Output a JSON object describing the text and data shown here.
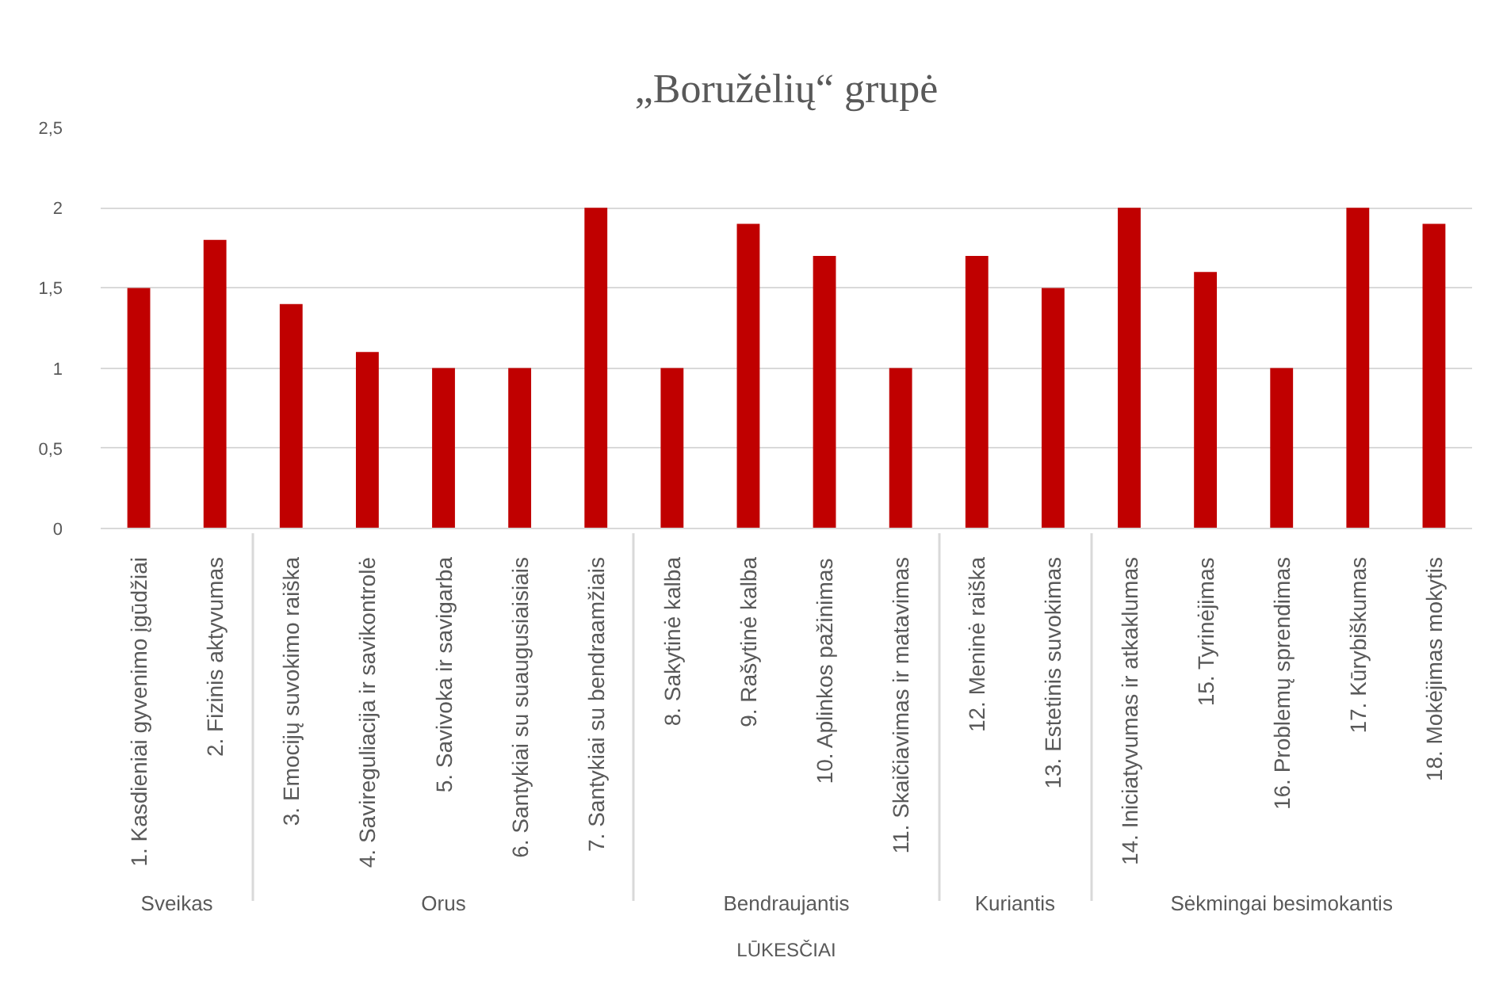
{
  "chart_data": {
    "type": "bar",
    "title": "„Boružėlių“ grupė",
    "categories": [
      [
        "LŪKESČIAI",
        "Sveikas",
        "1. Kasdieniai gyvenimo įgūdžiai"
      ],
      [
        null,
        null,
        "2. Fizinis aktyvumas"
      ],
      [
        null,
        "Orus",
        "3. Emocijų suvokimo raiška"
      ],
      [
        null,
        null,
        "4. Savireguliacija ir savikontrolė"
      ],
      [
        null,
        null,
        "5. Savivoka ir savigarba"
      ],
      [
        null,
        null,
        "6. Santykiai su suaugusiaisiais"
      ],
      [
        null,
        null,
        "7. Santykiai su bendraamžiais"
      ],
      [
        null,
        "Bendraujantis",
        "8. Sakytinė kalba"
      ],
      [
        null,
        null,
        "9. Rašytinė kalba"
      ],
      [
        null,
        null,
        "10. Aplinkos pažinimas"
      ],
      [
        null,
        null,
        "11. Skaičiavimas ir matavimas"
      ],
      [
        null,
        "Kuriantis",
        "12. Meninė raiška"
      ],
      [
        null,
        null,
        "13. Estetinis suvokimas"
      ],
      [
        null,
        "Sėkmingai besimokantis",
        "14. Iniciatyvumas ir atkaklumas"
      ],
      [
        null,
        null,
        "15. Tyrinėjimas"
      ],
      [
        null,
        null,
        "16. Problemų sprendimas"
      ],
      [
        null,
        null,
        "17. Kūrybiškumas"
      ],
      [
        null,
        null,
        "18. Mokėjimas mokytis"
      ]
    ],
    "values": [
      1.5,
      1.8,
      1.4,
      1.1,
      1.0,
      1.0,
      2.0,
      1.0,
      1.9,
      1.7,
      1.0,
      1.7,
      1.5,
      2.0,
      1.6,
      1.0,
      2.0,
      1.9
    ],
    "color": "#c00000",
    "ylim": [
      0,
      2.5
    ],
    "yticks": [
      0,
      {
        "value": 0.5,
        "label": "0,5"
      },
      1,
      {
        "value": 1.5,
        "label": "1,5"
      },
      2,
      {
        "value": 2.5,
        "label": "2,5"
      }
    ],
    "grid": "y"
  }
}
